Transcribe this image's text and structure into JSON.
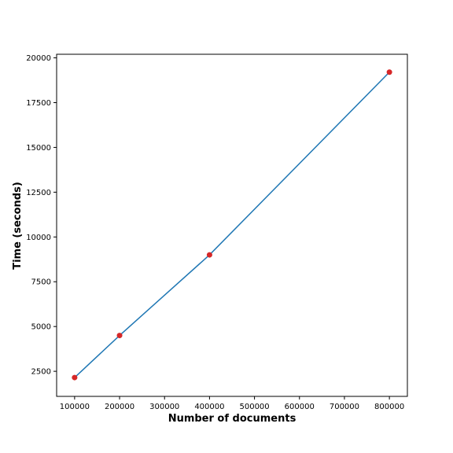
{
  "chart_data": {
    "type": "line",
    "title": "",
    "xlabel": "Number of documents",
    "ylabel": "Time (seconds)",
    "xlim": [
      60000,
      840000
    ],
    "ylim": [
      1100,
      20200
    ],
    "xticks": [
      100000,
      200000,
      300000,
      400000,
      500000,
      600000,
      700000,
      800000
    ],
    "xtick_labels": [
      "100000",
      "200000",
      "300000",
      "400000",
      "500000",
      "600000",
      "700000",
      "800000"
    ],
    "yticks": [
      2500,
      5000,
      7500,
      10000,
      12500,
      15000,
      17500,
      20000
    ],
    "ytick_labels": [
      "2500",
      "5000",
      "7500",
      "10000",
      "12500",
      "15000",
      "17500",
      "20000"
    ],
    "grid": false,
    "series": [
      {
        "x": [
          100000,
          200000,
          400000,
          800000
        ],
        "y": [
          2150,
          4500,
          9000,
          19200
        ],
        "line_color": "#1f77b4",
        "marker_color": "#d62728"
      }
    ]
  }
}
